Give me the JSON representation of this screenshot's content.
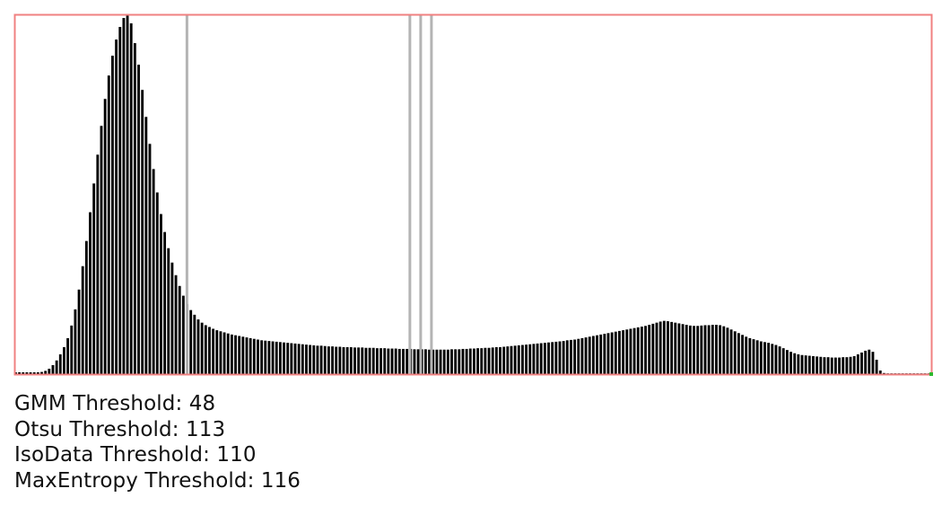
{
  "chart_data": {
    "type": "bar",
    "xlim": [
      0,
      255
    ],
    "ylim": [
      0,
      1
    ],
    "grid": false,
    "legend": "none",
    "colors": {
      "bars": "#000000",
      "frame": "#f08080",
      "threshold_marker": "#b4b4b4"
    },
    "values": [
      0.005,
      0.005,
      0.005,
      0.005,
      0.005,
      0.005,
      0.005,
      0.006,
      0.009,
      0.015,
      0.025,
      0.038,
      0.055,
      0.075,
      0.1,
      0.135,
      0.18,
      0.235,
      0.3,
      0.37,
      0.45,
      0.53,
      0.61,
      0.69,
      0.765,
      0.83,
      0.885,
      0.93,
      0.965,
      0.99,
      1.0,
      0.975,
      0.92,
      0.86,
      0.79,
      0.715,
      0.64,
      0.57,
      0.505,
      0.445,
      0.395,
      0.35,
      0.31,
      0.275,
      0.245,
      0.218,
      0.195,
      0.178,
      0.165,
      0.152,
      0.143,
      0.136,
      0.131,
      0.126,
      0.122,
      0.119,
      0.116,
      0.113,
      0.11,
      0.108,
      0.106,
      0.104,
      0.102,
      0.1,
      0.098,
      0.096,
      0.094,
      0.093,
      0.092,
      0.091,
      0.09,
      0.089,
      0.088,
      0.087,
      0.086,
      0.085,
      0.084,
      0.083,
      0.082,
      0.081,
      0.08,
      0.079,
      0.079,
      0.078,
      0.077,
      0.077,
      0.076,
      0.076,
      0.075,
      0.075,
      0.075,
      0.074,
      0.074,
      0.074,
      0.073,
      0.073,
      0.073,
      0.072,
      0.072,
      0.072,
      0.071,
      0.071,
      0.071,
      0.07,
      0.07,
      0.07,
      0.07,
      0.069,
      0.069,
      0.069,
      0.069,
      0.068,
      0.068,
      0.068,
      0.068,
      0.068,
      0.068,
      0.069,
      0.069,
      0.069,
      0.07,
      0.07,
      0.071,
      0.071,
      0.072,
      0.072,
      0.073,
      0.073,
      0.074,
      0.075,
      0.075,
      0.076,
      0.077,
      0.078,
      0.079,
      0.08,
      0.081,
      0.082,
      0.083,
      0.084,
      0.085,
      0.086,
      0.087,
      0.088,
      0.089,
      0.09,
      0.091,
      0.092,
      0.094,
      0.095,
      0.096,
      0.098,
      0.1,
      0.102,
      0.104,
      0.106,
      0.108,
      0.11,
      0.112,
      0.114,
      0.116,
      0.118,
      0.12,
      0.122,
      0.124,
      0.126,
      0.128,
      0.13,
      0.132,
      0.134,
      0.137,
      0.14,
      0.143,
      0.146,
      0.148,
      0.147,
      0.145,
      0.143,
      0.141,
      0.139,
      0.137,
      0.135,
      0.134,
      0.134,
      0.135,
      0.136,
      0.136,
      0.137,
      0.137,
      0.136,
      0.133,
      0.129,
      0.124,
      0.119,
      0.114,
      0.109,
      0.104,
      0.1,
      0.097,
      0.094,
      0.091,
      0.089,
      0.087,
      0.084,
      0.081,
      0.077,
      0.072,
      0.067,
      0.062,
      0.058,
      0.055,
      0.053,
      0.052,
      0.051,
      0.05,
      0.049,
      0.048,
      0.047,
      0.047,
      0.046,
      0.046,
      0.046,
      0.047,
      0.047,
      0.048,
      0.05,
      0.055,
      0.06,
      0.065,
      0.068,
      0.062,
      0.04,
      0.01,
      0.003,
      0.002,
      0.002,
      0.002,
      0.002,
      0.002,
      0.002,
      0.002,
      0.002,
      0.002,
      0.002,
      0.002,
      0.002
    ],
    "threshold_markers": [
      48,
      110,
      113,
      116
    ]
  },
  "thresholds": [
    {
      "label": "GMM Threshold: 48"
    },
    {
      "label": "Otsu Threshold: 113"
    },
    {
      "label": "IsoData Threshold: 110"
    },
    {
      "label": "MaxEntropy Threshold: 116"
    }
  ]
}
